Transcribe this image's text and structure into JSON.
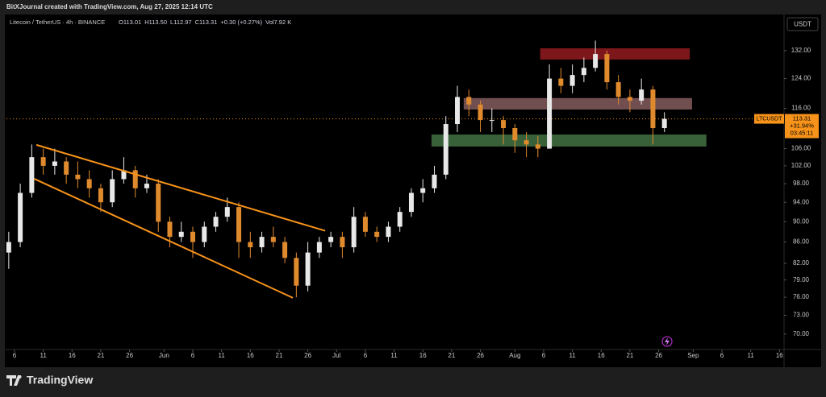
{
  "chart_data": {
    "type": "candlestick",
    "header": "BitXJournal created with TradingView.com, Aug 27, 2025 12:14 UTC",
    "symbol_line": "Litecoin / TetherUS · 4h · BINANCE",
    "legend_values": [
      "O113.01",
      "H113.50",
      "L112.97",
      "C113.31",
      "+0.30 (+0.27%)",
      "Vol7.92 K"
    ],
    "currency": "USDT",
    "brand": "TradingView",
    "ticker": "LTCUSDT",
    "last_price": 113.31,
    "last_change": "+31.94%",
    "countdown": "03:45:11",
    "log_scale": true,
    "up_color": "#e8e8e8",
    "down_color": "#e08a2e",
    "line_color": "#f7931a",
    "xlim": [
      3.6,
      138.8
    ],
    "xticks": [
      {
        "value": 5,
        "label": "6"
      },
      {
        "value": 10,
        "label": "11"
      },
      {
        "value": 15,
        "label": "16"
      },
      {
        "value": 20,
        "label": "21"
      },
      {
        "value": 25,
        "label": "26"
      },
      {
        "value": 31,
        "label": "Jun"
      },
      {
        "value": 36,
        "label": "6"
      },
      {
        "value": 41,
        "label": "11"
      },
      {
        "value": 46,
        "label": "16"
      },
      {
        "value": 51,
        "label": "21"
      },
      {
        "value": 56,
        "label": "26"
      },
      {
        "value": 61,
        "label": "Jul"
      },
      {
        "value": 66,
        "label": "6"
      },
      {
        "value": 71,
        "label": "11"
      },
      {
        "value": 76,
        "label": "16"
      },
      {
        "value": 81,
        "label": "21"
      },
      {
        "value": 86,
        "label": "26"
      },
      {
        "value": 92,
        "label": "Aug"
      },
      {
        "value": 97,
        "label": "6"
      },
      {
        "value": 102,
        "label": "11"
      },
      {
        "value": 107,
        "label": "16"
      },
      {
        "value": 112,
        "label": "21"
      },
      {
        "value": 117,
        "label": "26"
      },
      {
        "value": 123,
        "label": "Sep"
      },
      {
        "value": 128,
        "label": "6"
      },
      {
        "value": 133,
        "label": "11"
      },
      {
        "value": 138,
        "label": "16"
      }
    ],
    "ylim": [
      68.1,
      142.1
    ],
    "yticks": [
      {
        "value": 132,
        "label": "132.00"
      },
      {
        "value": 124,
        "label": "124.00"
      },
      {
        "value": 116,
        "label": "116.00"
      },
      {
        "value": 106,
        "label": "106.00"
      },
      {
        "value": 102,
        "label": "102.00"
      },
      {
        "value": 98,
        "label": "98.00"
      },
      {
        "value": 94,
        "label": "94.00"
      },
      {
        "value": 90,
        "label": "90.00"
      },
      {
        "value": 86,
        "label": "86.00"
      },
      {
        "value": 82,
        "label": "82.00"
      },
      {
        "value": 79,
        "label": "79.00"
      },
      {
        "value": 76,
        "label": "76.00"
      },
      {
        "value": 73,
        "label": "73.00"
      },
      {
        "value": 70,
        "label": "70.00"
      }
    ],
    "x": [
      4,
      6,
      8,
      10,
      12,
      14,
      16,
      18,
      20,
      22,
      24,
      26,
      28,
      30,
      32,
      34,
      36,
      38,
      40,
      42,
      44,
      46,
      48,
      50,
      52,
      54,
      56,
      58,
      60,
      62,
      64,
      66,
      68,
      70,
      72,
      74,
      76,
      78,
      80,
      82,
      84,
      86,
      88,
      90,
      92,
      94,
      96,
      98,
      100,
      102,
      104,
      106,
      108,
      110,
      112,
      114,
      116,
      118
    ],
    "ohlc": [
      [
        84,
        88,
        81,
        86
      ],
      [
        86,
        98,
        85,
        96
      ],
      [
        96,
        107,
        95,
        104
      ],
      [
        104,
        106,
        100,
        102
      ],
      [
        102,
        106,
        100,
        103
      ],
      [
        103,
        104,
        98,
        100
      ],
      [
        100,
        103,
        97,
        99
      ],
      [
        99,
        101,
        95,
        97
      ],
      [
        97,
        98,
        92,
        94
      ],
      [
        94,
        101,
        93,
        99
      ],
      [
        99,
        104,
        98,
        101
      ],
      [
        101,
        102,
        95,
        97
      ],
      [
        97,
        100,
        96,
        98
      ],
      [
        98,
        99,
        88,
        90
      ],
      [
        90,
        91,
        85,
        87
      ],
      [
        87,
        90,
        86,
        88
      ],
      [
        88,
        89,
        83,
        86
      ],
      [
        86,
        90,
        85,
        89
      ],
      [
        89,
        92,
        88,
        91
      ],
      [
        91,
        95,
        90,
        93
      ],
      [
        93,
        94,
        83,
        86
      ],
      [
        86,
        88,
        83,
        85
      ],
      [
        85,
        88,
        84,
        87
      ],
      [
        87,
        89,
        85,
        86
      ],
      [
        86,
        87,
        82,
        83
      ],
      [
        83,
        84,
        76,
        78
      ],
      [
        78,
        86,
        77,
        84
      ],
      [
        84,
        87,
        83,
        86
      ],
      [
        86,
        88,
        85,
        87
      ],
      [
        87,
        88,
        83,
        85
      ],
      [
        85,
        93,
        84,
        91
      ],
      [
        91,
        92,
        87,
        88
      ],
      [
        88,
        89,
        86,
        87
      ],
      [
        87,
        90,
        86,
        89
      ],
      [
        89,
        93,
        88,
        92
      ],
      [
        92,
        97,
        91,
        96
      ],
      [
        96,
        99,
        94,
        97
      ],
      [
        97,
        102,
        96,
        100
      ],
      [
        100,
        114,
        99,
        112
      ],
      [
        112,
        122,
        110,
        119
      ],
      [
        119,
        121,
        114,
        117
      ],
      [
        117,
        118,
        110,
        113
      ],
      [
        113,
        116,
        110,
        113
      ],
      [
        113,
        114,
        107,
        111
      ],
      [
        111,
        112,
        105,
        108
      ],
      [
        108,
        110,
        104,
        107
      ],
      [
        107,
        109,
        104,
        106
      ],
      [
        106,
        128,
        106,
        124
      ],
      [
        124,
        127,
        120,
        122
      ],
      [
        122,
        128,
        120,
        125
      ],
      [
        125,
        130,
        123,
        127
      ],
      [
        127,
        135,
        126,
        131
      ],
      [
        131,
        132,
        121,
        123
      ],
      [
        123,
        125,
        117,
        119
      ],
      [
        119,
        121,
        115,
        118
      ],
      [
        118,
        124,
        117,
        121
      ],
      [
        121,
        122,
        107,
        111
      ],
      [
        111,
        115,
        110,
        113.31
      ]
    ],
    "trendlines": [
      {
        "x": [
          8.8,
          59.0
        ],
        "y": [
          106.9,
          88.2
        ]
      },
      {
        "x": [
          8.4,
          53.4
        ],
        "y": [
          99.1,
          75.9
        ]
      }
    ],
    "zones": [
      {
        "x": [
          96.4,
          122.4
        ],
        "y": [
          132.7,
          129.4
        ],
        "color": "#8b1a1f"
      },
      {
        "x": [
          83.1,
          122.8
        ],
        "y": [
          118.7,
          115.7
        ],
        "color": "#7d5658"
      },
      {
        "x": [
          77.5,
          125.3
        ],
        "y": [
          109.4,
          106.5
        ],
        "color": "#3e6b40"
      }
    ]
  }
}
